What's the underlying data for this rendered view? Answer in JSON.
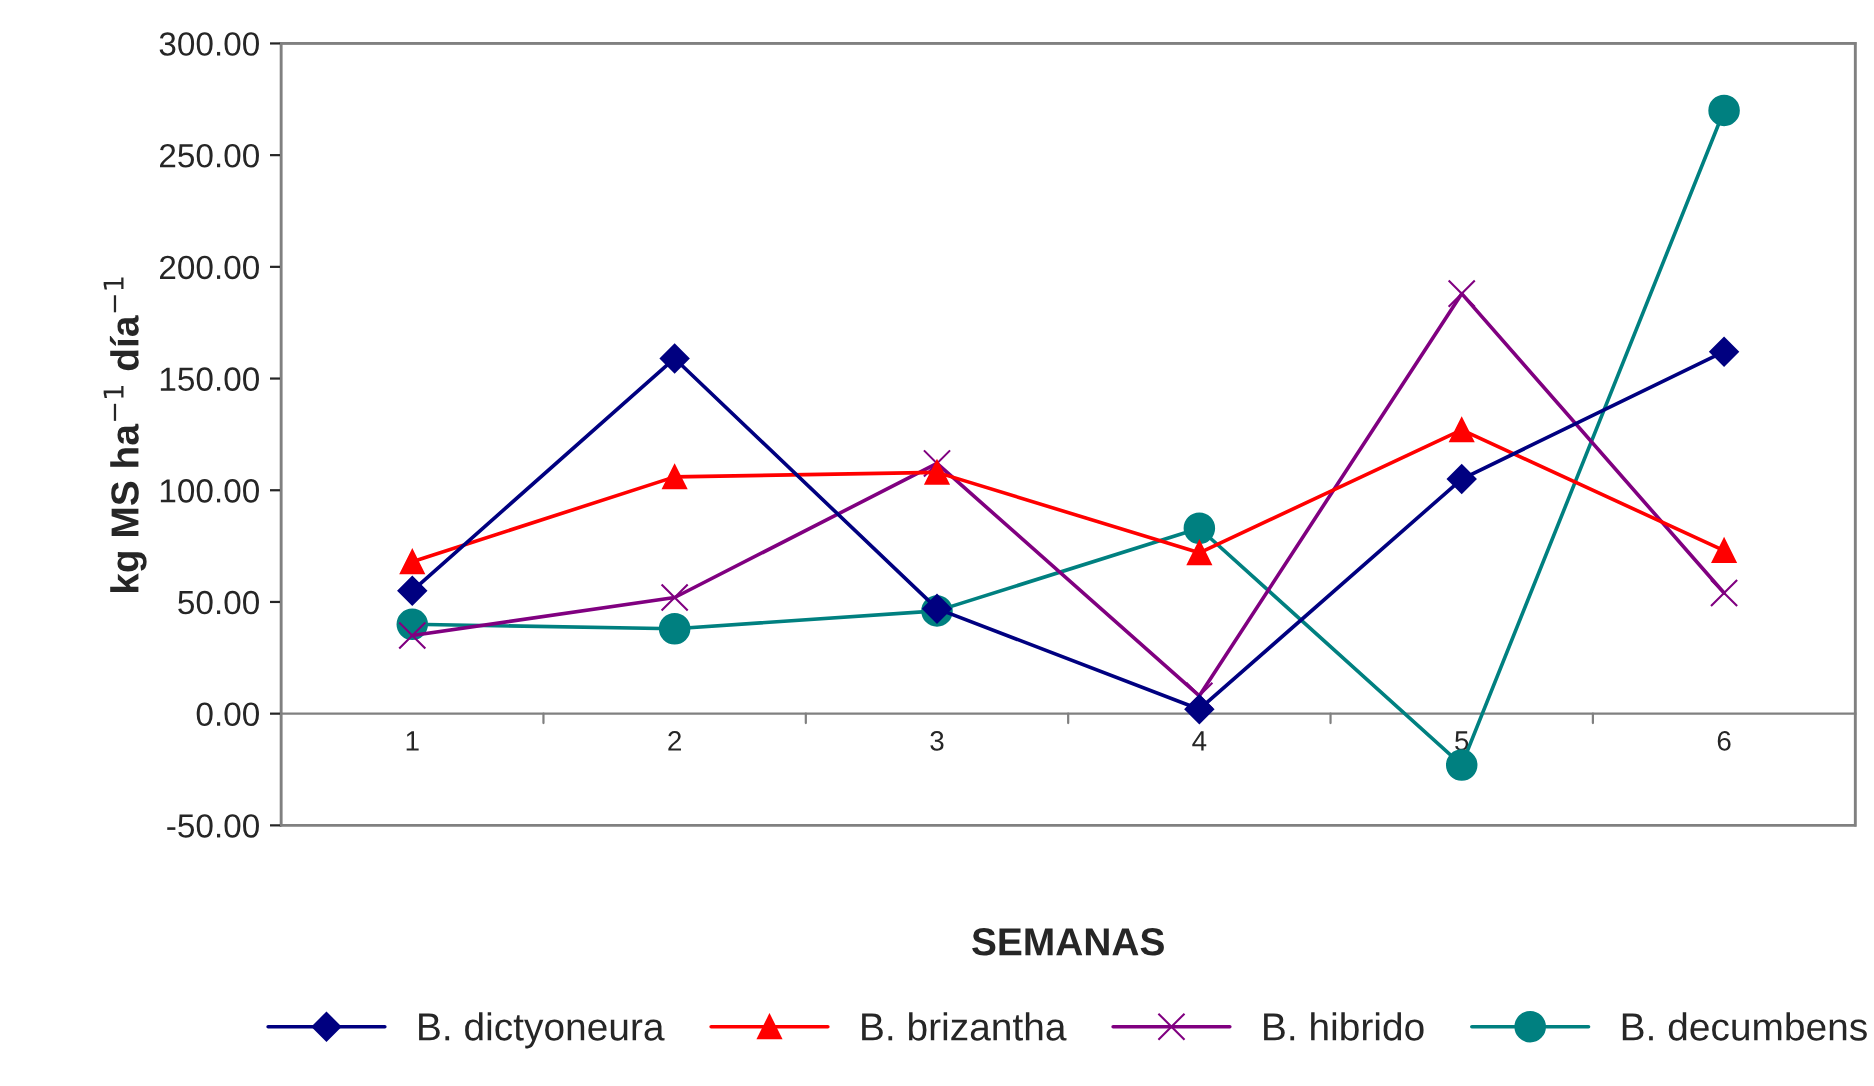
{
  "chart_data": {
    "type": "line",
    "xlabel": "SEMANAS",
    "ylabel": "kg MS ha$^{−1}$ día$^{−1}$",
    "categories": [
      "1",
      "2",
      "3",
      "4",
      "5",
      "6"
    ],
    "series": [
      {
        "name": "B. dictyoneura",
        "color": "#000080",
        "marker": "diamond",
        "values": [
          55,
          159,
          47,
          2,
          105,
          162
        ]
      },
      {
        "name": "B. brizantha",
        "color": "#ff0000",
        "marker": "triangle",
        "values": [
          68,
          106,
          108,
          72,
          127,
          73
        ]
      },
      {
        "name": "B. hibrido",
        "color": "#800080",
        "marker": "cross",
        "values": [
          35,
          52,
          112,
          8,
          188,
          54
        ]
      },
      {
        "name": "B. decumbens",
        "color": "#008080",
        "marker": "circle",
        "values": [
          40,
          38,
          46,
          83,
          -23,
          270
        ]
      }
    ],
    "ylim": [
      -50,
      300
    ],
    "yticks": [
      {
        "value": -50,
        "label": "-50.00"
      },
      {
        "value": 0,
        "label": "0.00"
      },
      {
        "value": 50,
        "label": "50.00"
      },
      {
        "value": 100,
        "label": "100.00"
      },
      {
        "value": 150,
        "label": "150.00"
      },
      {
        "value": 200,
        "label": "200.00"
      },
      {
        "value": 250,
        "label": "250.00"
      },
      {
        "value": 300,
        "label": "300.00"
      }
    ],
    "grid": false,
    "legend": "bottom",
    "line_style": "solid"
  }
}
